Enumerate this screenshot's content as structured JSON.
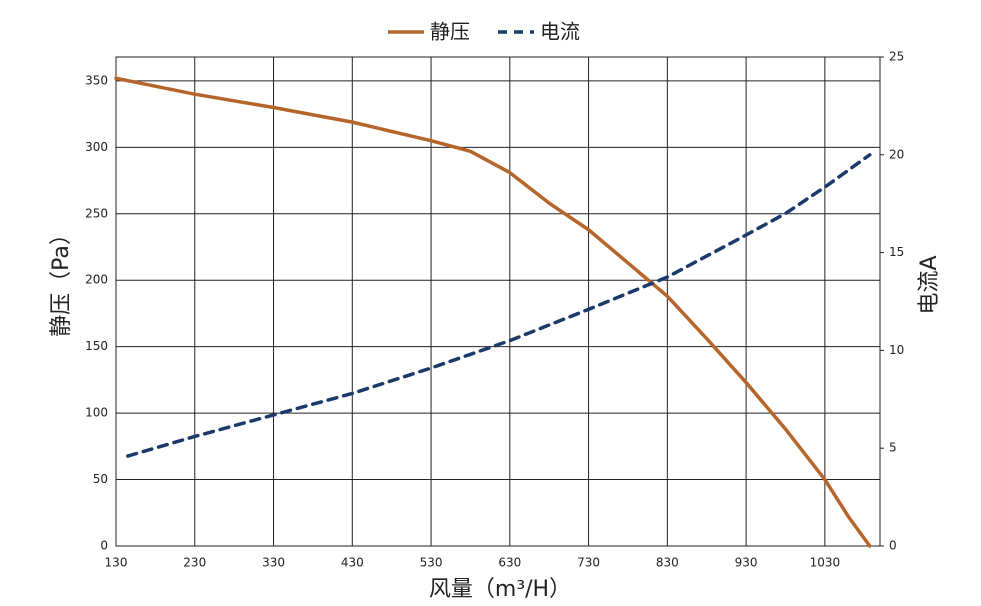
{
  "chart_data": {
    "type": "line",
    "x_label": "风量（m³/H）",
    "y_label": "静压（Pa）",
    "y2_label": "电流A",
    "xlim": [
      130,
      1100
    ],
    "xticks": [
      130,
      230,
      330,
      430,
      530,
      630,
      730,
      830,
      930,
      1030
    ],
    "ylim": [
      0,
      368
    ],
    "yticks": [
      0,
      50,
      100,
      150,
      200,
      250,
      300,
      350
    ],
    "y2lim": [
      0,
      25
    ],
    "y2ticks": [
      0,
      5,
      10,
      15,
      20,
      25
    ],
    "grid": true,
    "legend": "top",
    "series": [
      {
        "name": "静压",
        "color": "#b5652a",
        "dash": false,
        "x": [
          130,
          230,
          330,
          430,
          530,
          580,
          630,
          680,
          730,
          780,
          830,
          880,
          930,
          980,
          1030,
          1060,
          1087
        ],
        "values": [
          352,
          340,
          330,
          319,
          305,
          297,
          281,
          258,
          238,
          213,
          188,
          156,
          123,
          88,
          50,
          22,
          0
        ]
      },
      {
        "name": "电流",
        "color": "#1a3a6a",
        "dash": true,
        "axis": "y2",
        "x": [
          145,
          230,
          330,
          430,
          530,
          630,
          730,
          830,
          930,
          980,
          1030,
          1087
        ],
        "values": [
          4.6,
          5.6,
          6.7,
          7.8,
          9.1,
          10.5,
          12.1,
          13.75,
          15.9,
          17.0,
          18.35,
          20.0
        ]
      }
    ]
  }
}
